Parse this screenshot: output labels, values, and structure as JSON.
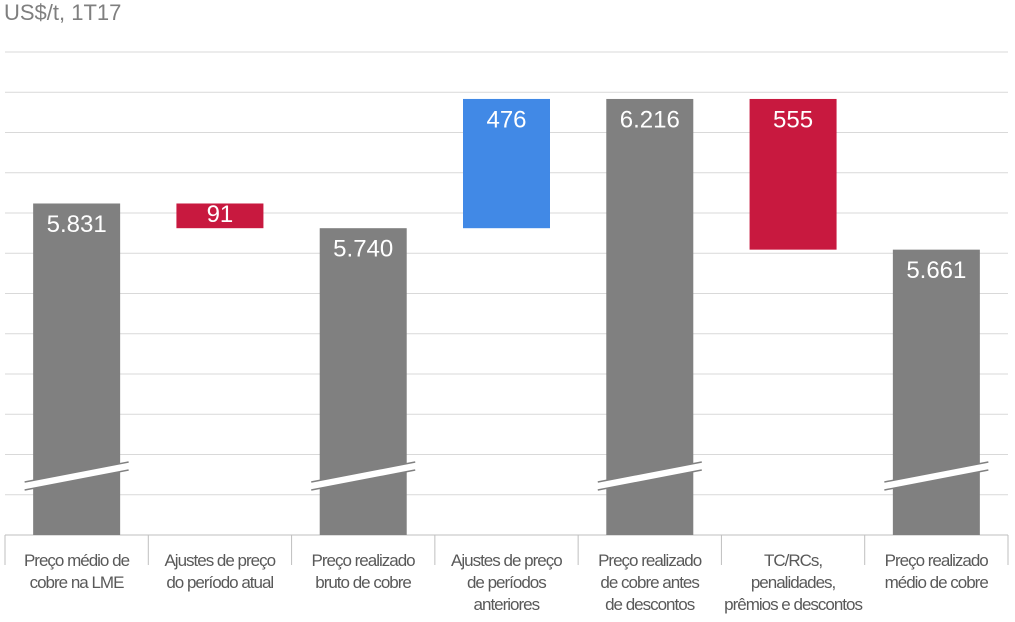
{
  "chart_data": {
    "type": "waterfall",
    "title": "US$/t, 1T17",
    "categories": [
      "Preço médio de\ncobre na LME",
      "Ajustes de preço\ndo período atual",
      "Preço realizado\nbruto de cobre",
      "Ajustes de preço\nde períodos\nanteriores",
      "Preço realizado\nde cobre antes\nde descontos",
      "TC/RCs,\npenalidades,\nprêmios e descontos",
      "Preço realizado\nmédio de cobre"
    ],
    "values": [
      5831,
      91,
      5740,
      476,
      6216,
      555,
      5661
    ],
    "value_labels": [
      "5.831",
      "91",
      "5.740",
      "476",
      "6.216",
      "555",
      "5.661"
    ],
    "measures": [
      "total",
      "decrease",
      "total",
      "increase",
      "total",
      "decrease",
      "total"
    ],
    "colors": [
      "#808080",
      "#c8193f",
      "#808080",
      "#4189e6",
      "#808080",
      "#c8193f",
      "#808080"
    ],
    "ylim": [
      4610,
      6400
    ],
    "grid": true,
    "axis_break": true
  }
}
